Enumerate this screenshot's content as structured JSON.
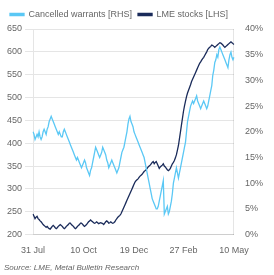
{
  "chart_data": {
    "type": "line",
    "categories": [
      "31 Jul",
      null,
      null,
      null,
      null,
      null,
      null,
      null,
      null,
      null,
      null,
      null,
      null,
      null,
      null,
      null,
      null,
      null,
      null,
      null,
      null,
      null,
      null,
      null,
      null,
      null,
      null,
      null,
      null,
      null,
      null,
      null,
      null,
      null,
      null,
      null,
      null,
      null,
      null,
      null,
      null,
      null,
      null,
      null,
      null,
      null,
      null,
      null,
      null,
      null,
      "10 Oct",
      null,
      null,
      null,
      null,
      null,
      null,
      null,
      null,
      null,
      null,
      null,
      null,
      null,
      null,
      null,
      null,
      null,
      null,
      null,
      null,
      null,
      null,
      null,
      null,
      null,
      null,
      null,
      null,
      null,
      null,
      null,
      null,
      null,
      null,
      null,
      null,
      null,
      null,
      null,
      null,
      null,
      null,
      null,
      null,
      null,
      null,
      null,
      null,
      null,
      "19 Dec",
      null,
      null,
      null,
      null,
      null,
      null,
      null,
      null,
      null,
      null,
      null,
      null,
      null,
      null,
      null,
      null,
      null,
      null,
      null,
      null,
      null,
      null,
      null,
      null,
      null,
      null,
      null,
      null,
      null,
      null,
      null,
      null,
      null,
      null,
      null,
      null,
      null,
      null,
      null,
      null,
      null,
      null,
      null,
      null,
      null,
      null,
      null,
      null,
      "27 Feb",
      null,
      null,
      null,
      null,
      null,
      null,
      null,
      null,
      null,
      null,
      null,
      null,
      null,
      null,
      null,
      null,
      null,
      null,
      null,
      null,
      null,
      null,
      null,
      null,
      null,
      null,
      null,
      null,
      null,
      null,
      null,
      null,
      null,
      null,
      null,
      null,
      null,
      null,
      null,
      null,
      null,
      null,
      null,
      null,
      null,
      null,
      null,
      null,
      null,
      "10 May"
    ],
    "series": [
      {
        "name": "Cancelled warrants [RHS]",
        "color": "#5BC8F5",
        "axis": "y2",
        "values": [
          20,
          19.5,
          18.5,
          19,
          19.5,
          19,
          20,
          19,
          18.5,
          19,
          20,
          20.5,
          20,
          19.5,
          20.5,
          21,
          22,
          22.5,
          23,
          22.5,
          22,
          21.5,
          21,
          20.5,
          20,
          19.5,
          20,
          19.5,
          19,
          19,
          20,
          20.5,
          20,
          19.5,
          19,
          18.5,
          18,
          17.5,
          17,
          16.5,
          16,
          15.5,
          15,
          14.5,
          15,
          14.5,
          14,
          13.5,
          13,
          13.5,
          14,
          14.5,
          14,
          13,
          12.5,
          12,
          11.5,
          12.5,
          13,
          14,
          15,
          16,
          17,
          16.5,
          16,
          15.5,
          15,
          15.5,
          16,
          17,
          16.5,
          16,
          15.5,
          14.5,
          14,
          13,
          13.5,
          14,
          14.5,
          14,
          13.5,
          13,
          12.5,
          12,
          12.5,
          13,
          14,
          15,
          16,
          16.5,
          17,
          18,
          19,
          20,
          21.5,
          22.5,
          23,
          22,
          21.5,
          21,
          20,
          19.5,
          19,
          18.5,
          18,
          17.5,
          17,
          16.5,
          16,
          15.5,
          15,
          14,
          13,
          12,
          11,
          10,
          9,
          8,
          7,
          6.5,
          6,
          5.5,
          5,
          5,
          5.5,
          6.5,
          7.5,
          8.5,
          9.5,
          10.5,
          4,
          4.5,
          5,
          5.5,
          4,
          4.5,
          5.5,
          6.5,
          8,
          10,
          11,
          12,
          13,
          12,
          11,
          12,
          13,
          14,
          15,
          16,
          17,
          18,
          20,
          22,
          23,
          24,
          25,
          25.5,
          26,
          25.5,
          26,
          26.5,
          27,
          26,
          25.5,
          25,
          24.5,
          25,
          25.5,
          26,
          25.5,
          25,
          24.5,
          25,
          26,
          27,
          28,
          29,
          31,
          32,
          33.5,
          34,
          35,
          34.5,
          36,
          36.5,
          36,
          35.5,
          35,
          34.5,
          34,
          33.5,
          33,
          32.5,
          34,
          35,
          35.5,
          34.5,
          34,
          34.5
        ]
      },
      {
        "name": "LME stocks [LHS]",
        "color": "#1A2B5A",
        "axis": "y",
        "values": [
          245,
          240,
          235,
          238,
          240,
          235,
          233,
          230,
          228,
          225,
          222,
          220,
          218,
          216,
          218,
          215,
          213,
          212,
          215,
          218,
          220,
          218,
          215,
          213,
          215,
          218,
          220,
          222,
          220,
          218,
          215,
          213,
          215,
          218,
          220,
          222,
          225,
          225,
          222,
          220,
          218,
          215,
          213,
          215,
          218,
          220,
          222,
          225,
          225,
          223,
          220,
          218,
          220,
          222,
          225,
          228,
          230,
          232,
          230,
          228,
          226,
          225,
          226,
          228,
          226,
          224,
          225,
          226,
          225,
          224,
          222,
          225,
          228,
          230,
          228,
          225,
          226,
          228,
          226,
          225,
          226,
          228,
          232,
          235,
          238,
          240,
          242,
          245,
          250,
          255,
          260,
          265,
          270,
          275,
          280,
          285,
          290,
          295,
          300,
          305,
          310,
          315,
          318,
          320,
          322,
          325,
          328,
          330,
          332,
          335,
          338,
          340,
          342,
          345,
          348,
          350,
          352,
          355,
          358,
          360,
          355,
          358,
          360,
          355,
          350,
          345,
          348,
          350,
          352,
          355,
          350,
          348,
          345,
          342,
          340,
          342,
          345,
          350,
          355,
          358,
          362,
          368,
          375,
          385,
          395,
          410,
          425,
          440,
          455,
          470,
          482,
          492,
          502,
          510,
          516,
          522,
          528,
          535,
          540,
          545,
          550,
          555,
          560,
          565,
          570,
          575,
          578,
          582,
          585,
          588,
          592,
          596,
          600,
          605,
          608,
          610,
          612,
          615,
          614,
          612,
          610,
          612,
          614,
          616,
          618,
          620,
          619,
          617,
          615,
          612,
          610,
          612,
          614,
          616,
          618,
          620,
          622,
          620,
          618,
          616
        ]
      }
    ],
    "ylim": [
      200,
      650
    ],
    "yticks": [
      200,
      250,
      300,
      350,
      400,
      450,
      500,
      550,
      600,
      650
    ],
    "y2lim": [
      0,
      40
    ],
    "y2ticks": [
      {
        "value": 0,
        "label": "0%"
      },
      {
        "value": 5,
        "label": "5%"
      },
      {
        "value": 10,
        "label": "10%"
      },
      {
        "value": 15,
        "label": "15%"
      },
      {
        "value": 20,
        "label": "20%"
      },
      {
        "value": 25,
        "label": "25%"
      },
      {
        "value": 30,
        "label": "30%"
      },
      {
        "value": 35,
        "label": "35%"
      },
      {
        "value": 40,
        "label": "40%"
      }
    ],
    "grid": true,
    "legend": "upper left",
    "annotations": [
      "Source: LME, Metal Bulletin Research"
    ]
  }
}
